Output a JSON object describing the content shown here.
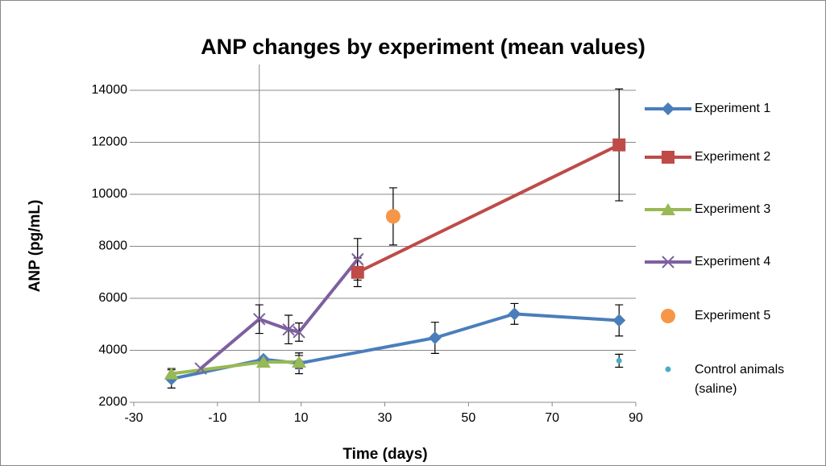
{
  "chart_data": {
    "type": "line",
    "title": "ANP changes by experiment (mean values)",
    "x_label": "Time (days)",
    "y_label": "ANP (pg/mL)",
    "xlim": [
      -30,
      90
    ],
    "xticks": [
      -30,
      -10,
      10,
      30,
      50,
      70,
      90
    ],
    "ylim": [
      2000,
      14000
    ],
    "yticks": [
      2000,
      4000,
      6000,
      8000,
      10000,
      12000,
      14000
    ],
    "grid": true,
    "y_axis_crosses_at": 0,
    "legend": "right",
    "series": [
      {
        "name": "Experiment 1",
        "color": "#4a7ebb",
        "marker": "diamond",
        "line": true,
        "x": [
          -21,
          1,
          9.5,
          42,
          61,
          86
        ],
        "values": [
          2900,
          3650,
          3500,
          4480,
          5400,
          5150
        ],
        "errors": [
          350,
          null,
          400,
          600,
          400,
          600
        ]
      },
      {
        "name": "Experiment 2",
        "color": "#be4b48",
        "marker": "square",
        "line": true,
        "x": [
          23.5,
          86
        ],
        "values": [
          7000,
          11900
        ],
        "errors": [
          550,
          2150
        ]
      },
      {
        "name": "Experiment 3",
        "color": "#98b954",
        "marker": "triangle",
        "line": true,
        "x": [
          -21,
          1,
          9.5
        ],
        "values": [
          3100,
          3550,
          3550
        ],
        "errors": [
          200,
          null,
          250
        ]
      },
      {
        "name": "Experiment 4",
        "color": "#7d60a0",
        "marker": "cross",
        "line": true,
        "x": [
          -14,
          0,
          7,
          9.5,
          23.5
        ],
        "values": [
          3300,
          5200,
          4800,
          4700,
          7500
        ],
        "errors": [
          null,
          550,
          550,
          350,
          800
        ]
      },
      {
        "name": "Experiment 5",
        "color": "#f79646",
        "marker": "circle",
        "line": false,
        "x": [
          32
        ],
        "values": [
          9150
        ],
        "errors": [
          1100
        ]
      },
      {
        "name": "Control animals (saline)",
        "color": "#4bacc6",
        "marker": "dot",
        "line": false,
        "x": [
          86
        ],
        "values": [
          3600
        ],
        "errors": [
          250
        ]
      }
    ]
  }
}
